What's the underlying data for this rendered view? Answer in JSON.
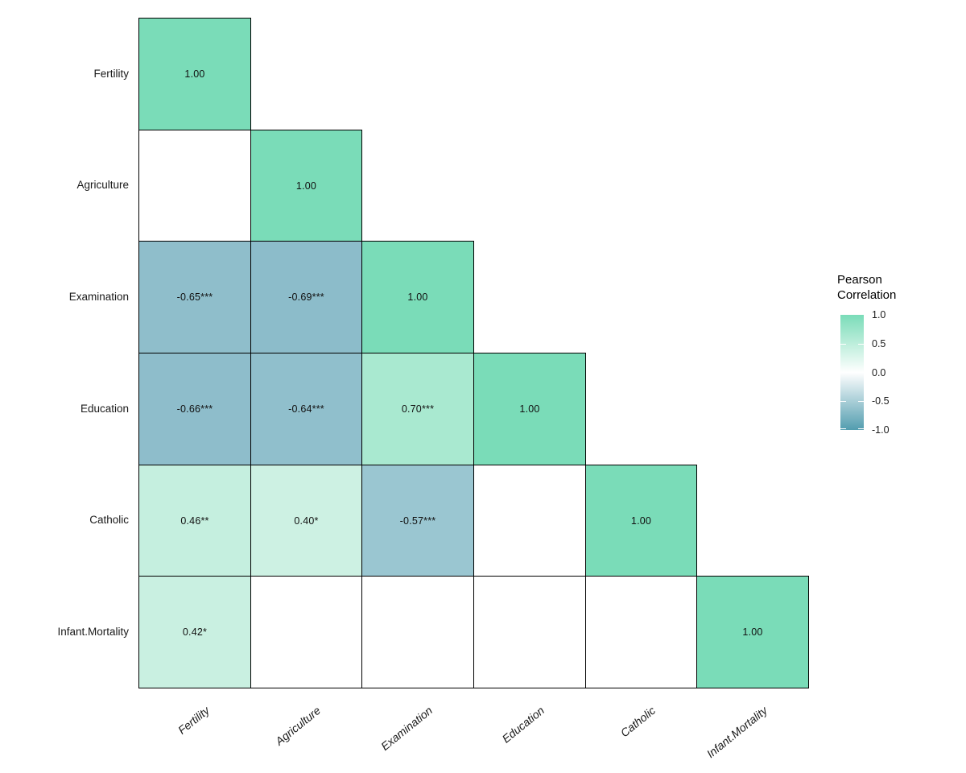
{
  "chart_data": {
    "type": "heatmap",
    "title": "",
    "variables": [
      "Fertility",
      "Agriculture",
      "Examination",
      "Education",
      "Catholic",
      "Infant.Mortality"
    ],
    "legend": {
      "title": [
        "Pearson",
        "Correlation"
      ],
      "ticks": [
        "1.0",
        "0.5",
        "0.0",
        "-0.5",
        "-1.0"
      ],
      "gradient_top": "#7ADCB8",
      "gradient_mid": "#FFFFFF",
      "gradient_bottom": "#529DAF",
      "position": "right",
      "range": [
        -1.0,
        1.0
      ]
    },
    "layout_hints": {
      "lower_triangle_only": true,
      "blank_cell_means_not_significant": true,
      "grid": "off",
      "cell_border_color": "#000000"
    },
    "cells": [
      {
        "ri": 0,
        "ci": 0,
        "row": "Fertility",
        "col": "Fertility",
        "value": 1.0,
        "label": "1.00",
        "fill": "#7ADCB8"
      },
      {
        "ri": 1,
        "ci": 0,
        "row": "Agriculture",
        "col": "Fertility",
        "value": null,
        "label": "",
        "fill": "#FFFFFF"
      },
      {
        "ri": 1,
        "ci": 1,
        "row": "Agriculture",
        "col": "Agriculture",
        "value": 1.0,
        "label": "1.00",
        "fill": "#7ADCB8"
      },
      {
        "ri": 2,
        "ci": 0,
        "row": "Examination",
        "col": "Fertility",
        "value": -0.65,
        "label": "-0.65***",
        "fill": "#8FBECB"
      },
      {
        "ri": 2,
        "ci": 1,
        "row": "Examination",
        "col": "Agriculture",
        "value": -0.69,
        "label": "-0.69***",
        "fill": "#8CBCCA"
      },
      {
        "ri": 2,
        "ci": 2,
        "row": "Examination",
        "col": "Examination",
        "value": 1.0,
        "label": "1.00",
        "fill": "#7ADCB8"
      },
      {
        "ri": 3,
        "ci": 0,
        "row": "Education",
        "col": "Fertility",
        "value": -0.66,
        "label": "-0.66***",
        "fill": "#8EBDCB"
      },
      {
        "ri": 3,
        "ci": 1,
        "row": "Education",
        "col": "Agriculture",
        "value": -0.64,
        "label": "-0.64***",
        "fill": "#90BFCC"
      },
      {
        "ri": 3,
        "ci": 2,
        "row": "Education",
        "col": "Examination",
        "value": 0.7,
        "label": "0.70***",
        "fill": "#A9E9D0"
      },
      {
        "ri": 3,
        "ci": 3,
        "row": "Education",
        "col": "Education",
        "value": 1.0,
        "label": "1.00",
        "fill": "#7ADCB8"
      },
      {
        "ri": 4,
        "ci": 0,
        "row": "Catholic",
        "col": "Fertility",
        "value": 0.46,
        "label": "0.46**",
        "fill": "#C5EFDF"
      },
      {
        "ri": 4,
        "ci": 1,
        "row": "Catholic",
        "col": "Agriculture",
        "value": 0.4,
        "label": "0.40*",
        "fill": "#CDF1E3"
      },
      {
        "ri": 4,
        "ci": 2,
        "row": "Catholic",
        "col": "Examination",
        "value": -0.57,
        "label": "-0.57***",
        "fill": "#9AC6D1"
      },
      {
        "ri": 4,
        "ci": 3,
        "row": "Catholic",
        "col": "Education",
        "value": null,
        "label": "",
        "fill": "#FFFFFF"
      },
      {
        "ri": 4,
        "ci": 4,
        "row": "Catholic",
        "col": "Catholic",
        "value": 1.0,
        "label": "1.00",
        "fill": "#7ADCB8"
      },
      {
        "ri": 5,
        "ci": 0,
        "row": "Infant.Mortality",
        "col": "Fertility",
        "value": 0.42,
        "label": "0.42*",
        "fill": "#C9F0E1"
      },
      {
        "ri": 5,
        "ci": 1,
        "row": "Infant.Mortality",
        "col": "Agriculture",
        "value": null,
        "label": "",
        "fill": "#FFFFFF"
      },
      {
        "ri": 5,
        "ci": 2,
        "row": "Infant.Mortality",
        "col": "Examination",
        "value": null,
        "label": "",
        "fill": "#FFFFFF"
      },
      {
        "ri": 5,
        "ci": 3,
        "row": "Infant.Mortality",
        "col": "Education",
        "value": null,
        "label": "",
        "fill": "#FFFFFF"
      },
      {
        "ri": 5,
        "ci": 4,
        "row": "Infant.Mortality",
        "col": "Catholic",
        "value": null,
        "label": "",
        "fill": "#FFFFFF"
      },
      {
        "ri": 5,
        "ci": 5,
        "row": "Infant.Mortality",
        "col": "Infant.Mortality",
        "value": 1.0,
        "label": "1.00",
        "fill": "#7ADCB8"
      }
    ]
  }
}
